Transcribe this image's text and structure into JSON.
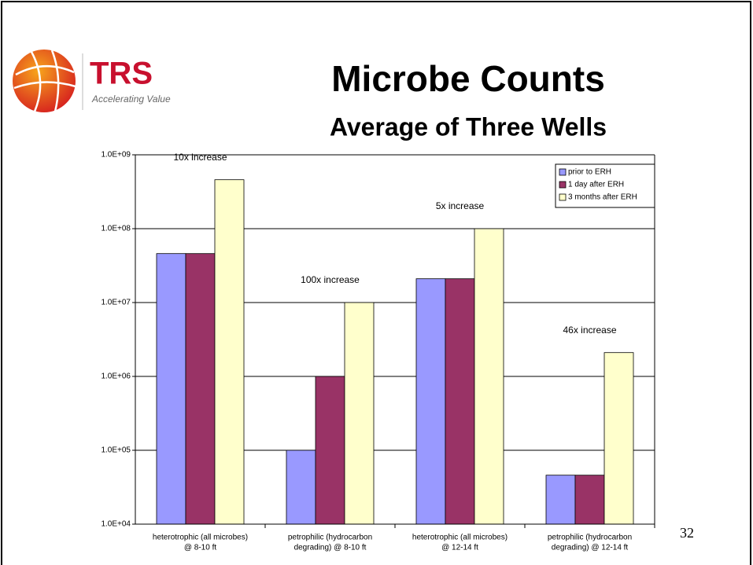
{
  "logo": {
    "name": "TRS",
    "tagline": "Accelerating Value"
  },
  "page_number": "32",
  "chart_data": {
    "type": "bar",
    "title": "Microbe Counts",
    "subtitle": "Average of Three Wells",
    "categories": [
      [
        "heterotrophic (all microbes)",
        "@ 8-10 ft"
      ],
      [
        "petrophilic (hydrocarbon",
        "degrading) @ 8-10 ft"
      ],
      [
        "heterotrophic (all microbes)",
        "@ 12-14 ft"
      ],
      [
        "petrophilic (hydrocarbon",
        "degrading) @ 12-14 ft"
      ]
    ],
    "series": [
      {
        "name": "prior to ERH",
        "color": "#9999ff",
        "values": [
          46000000,
          100000,
          21000000,
          46000
        ]
      },
      {
        "name": "1 day after ERH",
        "color": "#993366",
        "values": [
          46000000,
          1000000,
          21000000,
          46000
        ]
      },
      {
        "name": "3 months after ERH",
        "color": "#ffffcc",
        "values": [
          460000000,
          10000000,
          100000000,
          2100000
        ]
      }
    ],
    "annotations": [
      "10x increase",
      "100x increase",
      "5x increase",
      "46x increase"
    ],
    "log_scale": true,
    "grid": true,
    "legend": "upper right",
    "ylim": [
      10000,
      1000000000
    ],
    "yticks": [
      {
        "value": 10000,
        "label": "1.0E+04"
      },
      {
        "value": 100000,
        "label": "1.0E+05"
      },
      {
        "value": 1000000,
        "label": "1.0E+06"
      },
      {
        "value": 10000000,
        "label": "1.0E+07"
      },
      {
        "value": 100000000,
        "label": "1.0E+08"
      },
      {
        "value": 1000000000,
        "label": "1.0E+09"
      }
    ]
  }
}
